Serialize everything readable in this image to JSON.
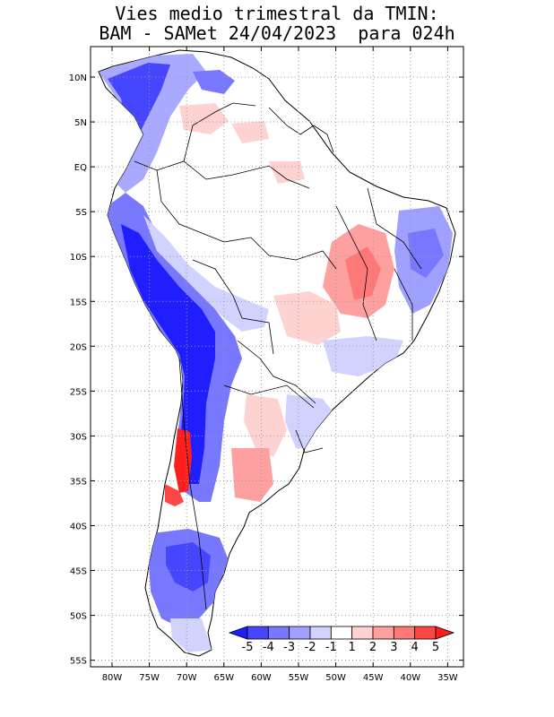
{
  "title": {
    "line1": "Vies medio trimestral da TMIN:",
    "line2": "BAM - SAMet 24/04/2023  para 024h"
  },
  "axes": {
    "lat_labels": [
      "10N",
      "5N",
      "EQ",
      "5S",
      "10S",
      "15S",
      "20S",
      "25S",
      "30S",
      "35S",
      "40S",
      "45S",
      "50S",
      "55S"
    ],
    "lon_labels": [
      "80W",
      "75W",
      "70W",
      "65W",
      "60W",
      "55W",
      "50W",
      "45W",
      "40W",
      "35W"
    ]
  },
  "colorbar": {
    "labels": [
      "-5",
      "-4",
      "-3",
      "-2",
      "-1",
      "1",
      "2",
      "3",
      "4",
      "5"
    ],
    "colors": [
      "#1e1eff",
      "#4646ff",
      "#7878ff",
      "#a0a0ff",
      "#d2d2ff",
      "#ffffff",
      "#ffd2d2",
      "#ffa0a0",
      "#ff7878",
      "#ff4646",
      "#ff1e1e"
    ]
  },
  "colors": {
    "strong_blue": "#1414ff",
    "mid_blue": "#6e6eff",
    "light_blue": "#c8c8ff",
    "light_red": "#ffc8c8",
    "mid_red": "#ff7878",
    "strong_red": "#ff1e1e",
    "border": "#000000",
    "grid": "#999999"
  }
}
